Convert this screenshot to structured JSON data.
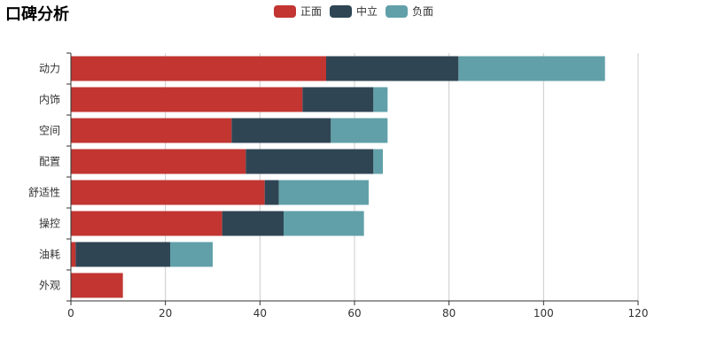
{
  "chart_data": {
    "type": "bar",
    "orientation": "horizontal",
    "stacked": true,
    "title": "口碑分析",
    "categories": [
      "动力",
      "内饰",
      "空间",
      "配置",
      "舒适性",
      "操控",
      "油耗",
      "外观"
    ],
    "series": [
      {
        "name": "正面",
        "color": "#c23531",
        "values": [
          54,
          49,
          34,
          37,
          41,
          32,
          1,
          11
        ]
      },
      {
        "name": "中立",
        "color": "#2f4554",
        "values": [
          28,
          15,
          21,
          27,
          3,
          13,
          20,
          0
        ]
      },
      {
        "name": "负面",
        "color": "#61a0a8",
        "values": [
          31,
          3,
          12,
          2,
          19,
          17,
          9,
          0
        ]
      }
    ],
    "xlim": [
      0,
      120
    ],
    "xticks": [
      0,
      20,
      40,
      60,
      80,
      100,
      120
    ],
    "grid": true,
    "legend_position": "top-center"
  }
}
